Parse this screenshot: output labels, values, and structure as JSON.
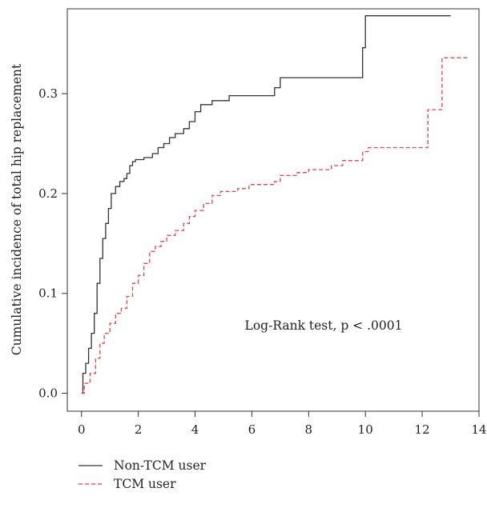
{
  "chart_data": {
    "type": "line",
    "title": "",
    "xlabel": "",
    "ylabel": "Cumulative incidence of total hip replacement",
    "xlim": [
      -0.5,
      14.0
    ],
    "ylim": [
      -0.018,
      0.385
    ],
    "xticks": [
      0,
      2,
      4,
      6,
      8,
      10,
      12,
      14
    ],
    "xtick_labels": [
      "0",
      "2",
      "4",
      "6",
      "8",
      "10",
      "12",
      "14"
    ],
    "yticks": [
      0.0,
      0.1,
      0.2,
      0.3
    ],
    "ytick_labels": [
      "0.0",
      "0.1",
      "0.2",
      "0.3"
    ],
    "annotation": "Log-Rank test, p < .0001",
    "legend_position": "bottom-left, below plot",
    "series": [
      {
        "name": "Non-TCM user",
        "color": "#333333",
        "style": "solid",
        "points": [
          [
            0.0,
            0.0
          ],
          [
            0.05,
            0.02
          ],
          [
            0.15,
            0.03
          ],
          [
            0.25,
            0.045
          ],
          [
            0.35,
            0.06
          ],
          [
            0.45,
            0.08
          ],
          [
            0.55,
            0.11
          ],
          [
            0.65,
            0.135
          ],
          [
            0.75,
            0.155
          ],
          [
            0.85,
            0.17
          ],
          [
            0.95,
            0.185
          ],
          [
            1.05,
            0.2
          ],
          [
            1.2,
            0.207
          ],
          [
            1.35,
            0.212
          ],
          [
            1.5,
            0.215
          ],
          [
            1.6,
            0.22
          ],
          [
            1.7,
            0.228
          ],
          [
            1.8,
            0.232
          ],
          [
            1.9,
            0.234
          ],
          [
            2.2,
            0.236
          ],
          [
            2.5,
            0.24
          ],
          [
            2.7,
            0.246
          ],
          [
            2.9,
            0.25
          ],
          [
            3.1,
            0.256
          ],
          [
            3.3,
            0.26
          ],
          [
            3.6,
            0.265
          ],
          [
            3.8,
            0.272
          ],
          [
            4.0,
            0.282
          ],
          [
            4.2,
            0.289
          ],
          [
            4.6,
            0.293
          ],
          [
            5.2,
            0.298
          ],
          [
            5.8,
            0.298
          ],
          [
            6.8,
            0.306
          ],
          [
            7.0,
            0.316
          ],
          [
            9.8,
            0.316
          ],
          [
            9.9,
            0.346
          ],
          [
            10.0,
            0.378
          ],
          [
            13.0,
            0.378
          ]
        ]
      },
      {
        "name": "TCM user",
        "color": "#e8434a",
        "style": "dashed",
        "points": [
          [
            0.0,
            0.0
          ],
          [
            0.1,
            0.01
          ],
          [
            0.3,
            0.02
          ],
          [
            0.5,
            0.035
          ],
          [
            0.65,
            0.05
          ],
          [
            0.8,
            0.06
          ],
          [
            1.0,
            0.07
          ],
          [
            1.2,
            0.08
          ],
          [
            1.4,
            0.085
          ],
          [
            1.6,
            0.097
          ],
          [
            1.8,
            0.11
          ],
          [
            2.0,
            0.118
          ],
          [
            2.2,
            0.13
          ],
          [
            2.4,
            0.142
          ],
          [
            2.6,
            0.147
          ],
          [
            2.8,
            0.152
          ],
          [
            3.0,
            0.158
          ],
          [
            3.3,
            0.163
          ],
          [
            3.6,
            0.17
          ],
          [
            3.8,
            0.177
          ],
          [
            4.0,
            0.183
          ],
          [
            4.3,
            0.19
          ],
          [
            4.6,
            0.198
          ],
          [
            4.9,
            0.202
          ],
          [
            5.5,
            0.205
          ],
          [
            5.9,
            0.209
          ],
          [
            6.8,
            0.212
          ],
          [
            7.0,
            0.218
          ],
          [
            7.6,
            0.221
          ],
          [
            8.0,
            0.224
          ],
          [
            8.8,
            0.228
          ],
          [
            9.2,
            0.233
          ],
          [
            9.9,
            0.242
          ],
          [
            10.1,
            0.246
          ],
          [
            12.1,
            0.246
          ],
          [
            12.2,
            0.284
          ],
          [
            12.7,
            0.336
          ],
          [
            13.6,
            0.336
          ]
        ]
      }
    ]
  }
}
